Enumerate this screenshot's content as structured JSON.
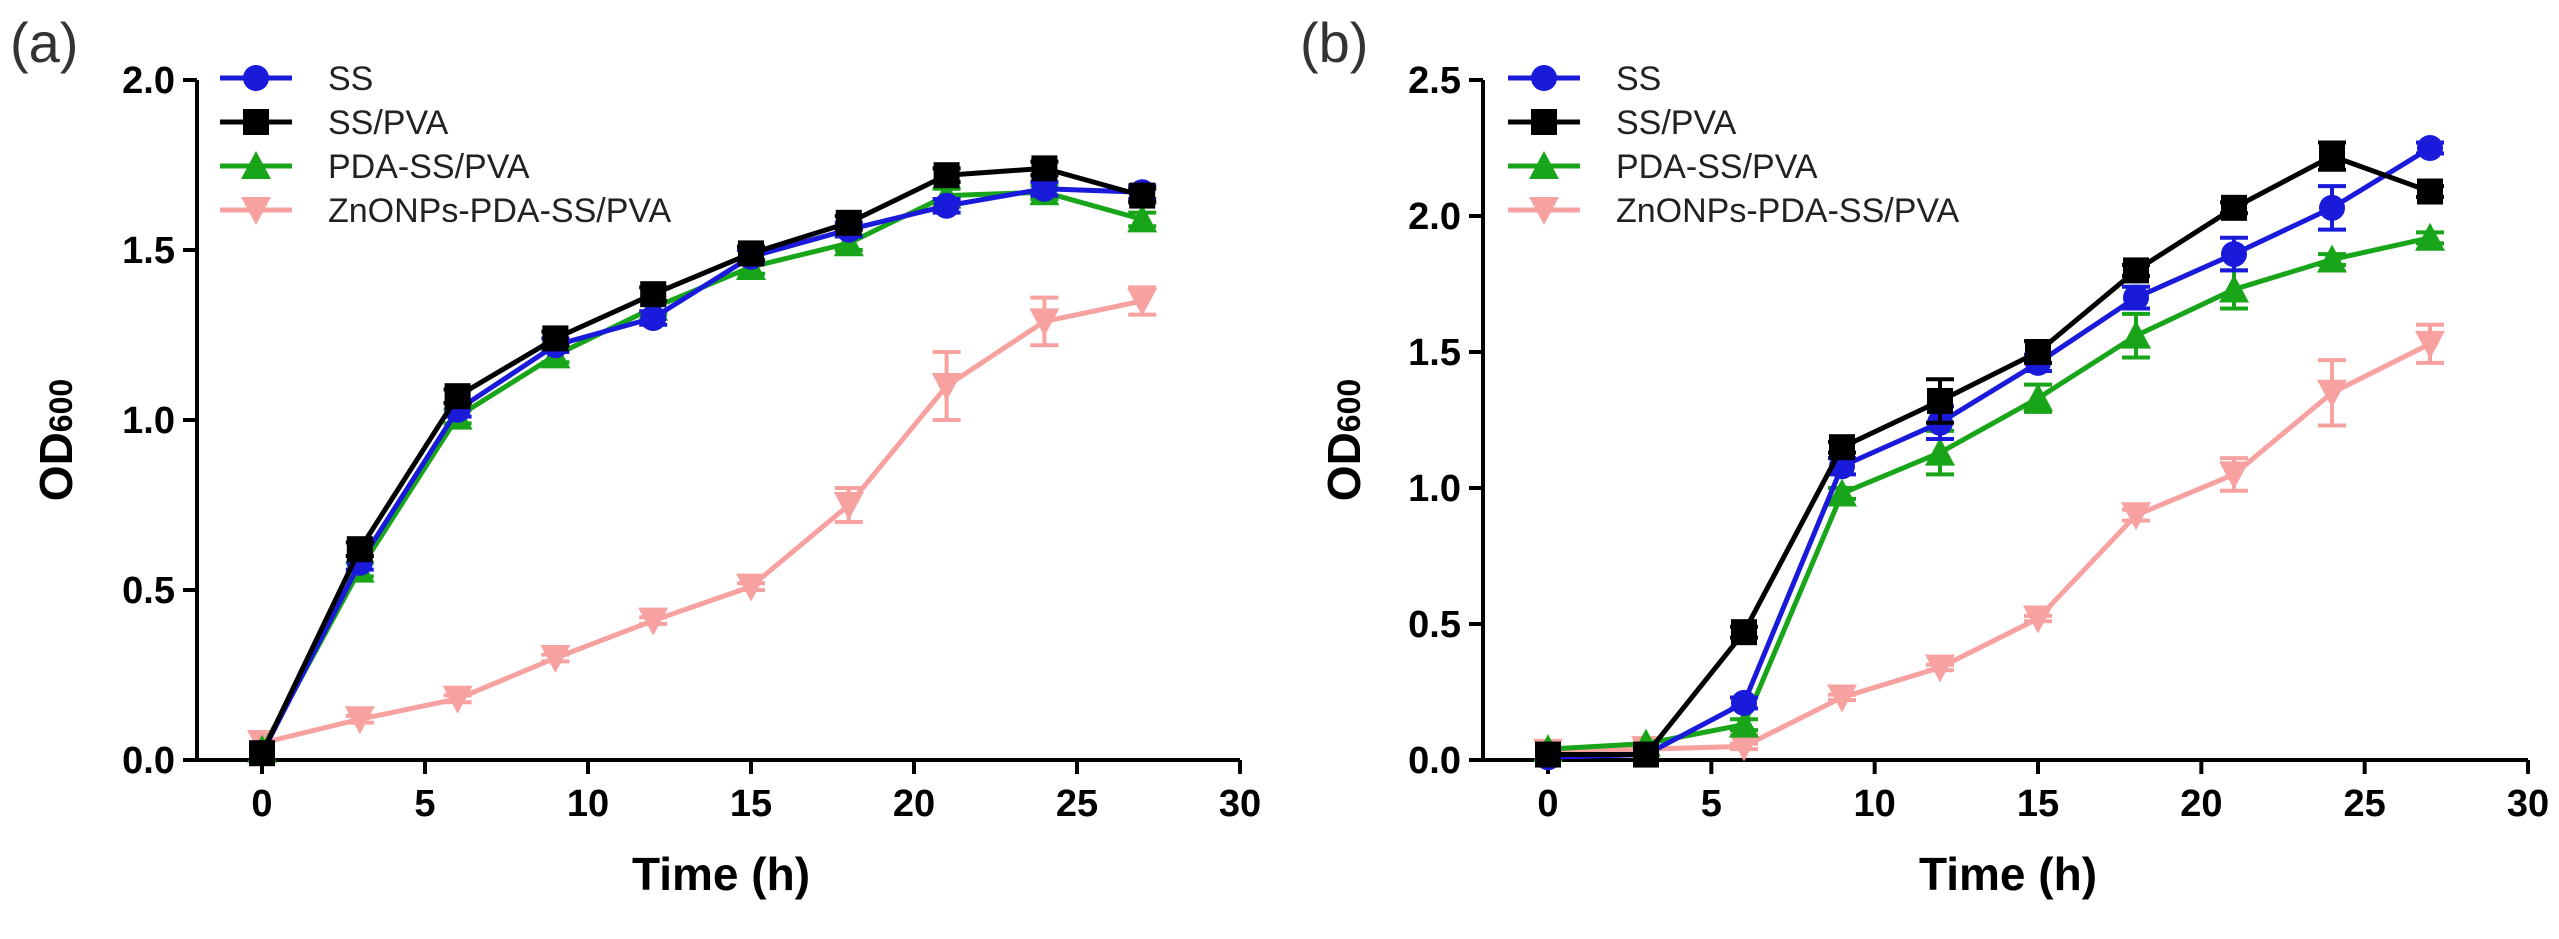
{
  "colors": {
    "SS": "#1a1adb",
    "SS/PVA": "#000000",
    "PDA-SS/PVA": "#19a519",
    "ZnONPs-PDA-SS/PVA": "#f7a1a1"
  },
  "chart_data": [
    {
      "panel_label": "(a)",
      "type": "line",
      "xlabel": "Time (h)",
      "ylabel_main": "OD",
      "ylabel_sub": "600",
      "xlim": [
        0,
        30
      ],
      "ylim": [
        0,
        2.0
      ],
      "xticks": [
        0,
        5,
        10,
        15,
        20,
        25,
        30
      ],
      "yticks": [
        0.0,
        0.5,
        1.0,
        1.5,
        2.0
      ],
      "ytick_labels": [
        "0.0",
        "0.5",
        "1.0",
        "1.5",
        "2.0"
      ],
      "legend_position": "top-left",
      "x": [
        0,
        3,
        6,
        9,
        12,
        15,
        18,
        21,
        24,
        27
      ],
      "series": [
        {
          "name": "SS",
          "marker": "circle",
          "values": [
            0.02,
            0.58,
            1.03,
            1.22,
            1.3,
            1.48,
            1.56,
            1.63,
            1.68,
            1.67
          ],
          "errors": [
            0,
            0.02,
            0.02,
            0.02,
            0.02,
            0.02,
            0.02,
            0.02,
            0.02,
            0.02
          ]
        },
        {
          "name": "SS/PVA",
          "marker": "square",
          "values": [
            0.02,
            0.62,
            1.07,
            1.24,
            1.37,
            1.49,
            1.58,
            1.72,
            1.74,
            1.66
          ],
          "errors": [
            0,
            0.02,
            0.02,
            0.02,
            0.02,
            0.02,
            0.02,
            0.02,
            0.02,
            0.02
          ]
        },
        {
          "name": "PDA-SS/PVA",
          "marker": "triangle-up",
          "values": [
            0.03,
            0.56,
            1.01,
            1.19,
            1.33,
            1.45,
            1.52,
            1.66,
            1.67,
            1.59
          ],
          "errors": [
            0,
            0.02,
            0.02,
            0.02,
            0.02,
            0.02,
            0.02,
            0.02,
            0.02,
            0.02
          ]
        },
        {
          "name": "ZnONPs-PDA-SS/PVA",
          "marker": "triangle-down",
          "values": [
            0.05,
            0.12,
            0.18,
            0.3,
            0.41,
            0.51,
            0.75,
            1.1,
            1.29,
            1.35
          ],
          "errors": [
            0,
            0.01,
            0.01,
            0.01,
            0.01,
            0.01,
            0.05,
            0.1,
            0.07,
            0.04
          ]
        }
      ]
    },
    {
      "panel_label": "(b)",
      "type": "line",
      "xlabel": "Time (h)",
      "ylabel_main": "OD",
      "ylabel_sub": "600",
      "xlim": [
        0,
        30
      ],
      "ylim": [
        0,
        2.5
      ],
      "xticks": [
        0,
        5,
        10,
        15,
        20,
        25,
        30
      ],
      "yticks": [
        0.0,
        0.5,
        1.0,
        1.5,
        2.0,
        2.5
      ],
      "ytick_labels": [
        "0.0",
        "0.5",
        "1.0",
        "1.5",
        "2.0",
        "2.5"
      ],
      "legend_position": "top-left",
      "x": [
        0,
        3,
        6,
        9,
        12,
        15,
        18,
        21,
        24,
        27
      ],
      "series": [
        {
          "name": "SS",
          "marker": "circle",
          "values": [
            0.01,
            0.02,
            0.21,
            1.08,
            1.24,
            1.46,
            1.7,
            1.86,
            2.03,
            2.25
          ],
          "errors": [
            0,
            0,
            0.02,
            0.03,
            0.06,
            0.03,
            0.04,
            0.06,
            0.08,
            0.02
          ]
        },
        {
          "name": "SS/PVA",
          "marker": "square",
          "values": [
            0.02,
            0.02,
            0.47,
            1.15,
            1.32,
            1.5,
            1.8,
            2.03,
            2.22,
            2.09
          ],
          "errors": [
            0,
            0,
            0.02,
            0.02,
            0.08,
            0.04,
            0.02,
            0.02,
            0.05,
            0.02
          ]
        },
        {
          "name": "PDA-SS/PVA",
          "marker": "triangle-up",
          "values": [
            0.04,
            0.06,
            0.13,
            0.98,
            1.13,
            1.33,
            1.56,
            1.73,
            1.84,
            1.92
          ],
          "errors": [
            0,
            0,
            0.02,
            0.02,
            0.08,
            0.05,
            0.08,
            0.07,
            0.02,
            0.02
          ]
        },
        {
          "name": "ZnONPs-PDA-SS/PVA",
          "marker": "triangle-down",
          "values": [
            0.03,
            0.04,
            0.05,
            0.23,
            0.34,
            0.52,
            0.9,
            1.05,
            1.35,
            1.53
          ],
          "errors": [
            0,
            0,
            0.01,
            0.01,
            0.01,
            0.01,
            0.02,
            0.06,
            0.12,
            0.07
          ]
        }
      ]
    }
  ]
}
